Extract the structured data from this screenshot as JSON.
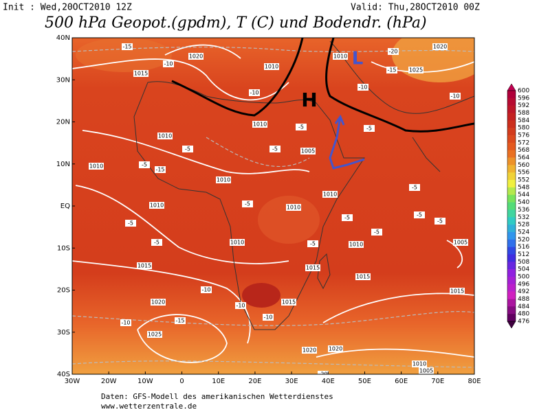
{
  "header": {
    "init": "Init : Wed,20OCT2010 12Z",
    "valid": "Valid: Thu,28OCT2010 00Z",
    "title": "500 hPa Geopot.(gpdm), T (C) und Bodendr. (hPa)"
  },
  "map": {
    "lat_labels": [
      "40N",
      "30N",
      "20N",
      "10N",
      "EQ",
      "10S",
      "20S",
      "30S",
      "40S"
    ],
    "lon_labels": [
      "30W",
      "20W",
      "10W",
      "0",
      "10E",
      "20E",
      "30E",
      "40E",
      "50E",
      "60E",
      "70E",
      "80E"
    ],
    "high": "H",
    "low": "L",
    "contour_labels": [
      "1020",
      "1015",
      "1010",
      "1010",
      "1010",
      "1010",
      "1005",
      "1010",
      "1010",
      "1015",
      "1020",
      "1025",
      "1020",
      "1020",
      "1010",
      "1005",
      "1015",
      "1015",
      "1010",
      "1015",
      "1020",
      "1025",
      "1010",
      "1005",
      "1010",
      "1015",
      "1010",
      "1010"
    ],
    "temp_labels": [
      "-15",
      "-10",
      "-10",
      "-5",
      "-5",
      "-5",
      "-5",
      "-5",
      "-5",
      "-5",
      "-5",
      "-5",
      "-5",
      "-5",
      "-5",
      "-10",
      "-10",
      "-15",
      "-10",
      "-20",
      "-15",
      "-10",
      "-5",
      "-5",
      "-10",
      "-15",
      "-20",
      "-10"
    ]
  },
  "colorbar": {
    "levels": [
      "600",
      "596",
      "592",
      "588",
      "584",
      "580",
      "576",
      "572",
      "568",
      "564",
      "560",
      "556",
      "552",
      "548",
      "544",
      "540",
      "536",
      "532",
      "528",
      "524",
      "520",
      "516",
      "512",
      "508",
      "504",
      "500",
      "496",
      "492",
      "488",
      "484",
      "480",
      "476"
    ]
  },
  "footer": {
    "source": "Daten: GFS-Modell des amerikanischen Wetterdienstes",
    "url": "www.wetterzentrale.de"
  }
}
